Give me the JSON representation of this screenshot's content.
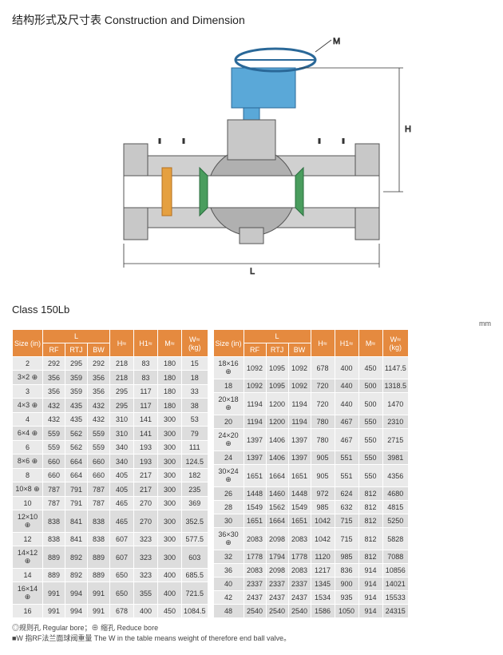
{
  "title": "结构形式及尺寸表 Construction and Dimension",
  "class_label": "Class 150Lb",
  "unit_label": "mm",
  "columns": {
    "size": "Size\n(in)",
    "L": "L",
    "RF": "RF",
    "RTJ": "RTJ",
    "BW": "BW",
    "H": "H≈",
    "H1": "H1≈",
    "M": "M≈",
    "W": "W≈\n(kg)"
  },
  "table_left": [
    [
      "2",
      "292",
      "295",
      "292",
      "218",
      "83",
      "180",
      "15"
    ],
    [
      "3×2 ⊕",
      "356",
      "359",
      "356",
      "218",
      "83",
      "180",
      "18"
    ],
    [
      "3",
      "356",
      "359",
      "356",
      "295",
      "117",
      "180",
      "33"
    ],
    [
      "4×3 ⊕",
      "432",
      "435",
      "432",
      "295",
      "117",
      "180",
      "38"
    ],
    [
      "4",
      "432",
      "435",
      "432",
      "310",
      "141",
      "300",
      "53"
    ],
    [
      "6×4 ⊕",
      "559",
      "562",
      "559",
      "310",
      "141",
      "300",
      "79"
    ],
    [
      "6",
      "559",
      "562",
      "559",
      "340",
      "193",
      "300",
      "111"
    ],
    [
      "8×6 ⊕",
      "660",
      "664",
      "660",
      "340",
      "193",
      "300",
      "124.5"
    ],
    [
      "8",
      "660",
      "664",
      "660",
      "405",
      "217",
      "300",
      "182"
    ],
    [
      "10×8 ⊕",
      "787",
      "791",
      "787",
      "405",
      "217",
      "300",
      "235"
    ],
    [
      "10",
      "787",
      "791",
      "787",
      "465",
      "270",
      "300",
      "369"
    ],
    [
      "12×10 ⊕",
      "838",
      "841",
      "838",
      "465",
      "270",
      "300",
      "352.5"
    ],
    [
      "12",
      "838",
      "841",
      "838",
      "607",
      "323",
      "300",
      "577.5"
    ],
    [
      "14×12 ⊕",
      "889",
      "892",
      "889",
      "607",
      "323",
      "300",
      "603"
    ],
    [
      "14",
      "889",
      "892",
      "889",
      "650",
      "323",
      "400",
      "685.5"
    ],
    [
      "16×14 ⊕",
      "991",
      "994",
      "991",
      "650",
      "355",
      "400",
      "721.5"
    ],
    [
      "16",
      "991",
      "994",
      "991",
      "678",
      "400",
      "450",
      "1084.5"
    ]
  ],
  "table_right": [
    [
      "18×16 ⊕",
      "1092",
      "1095",
      "1092",
      "678",
      "400",
      "450",
      "1147.5"
    ],
    [
      "18",
      "1092",
      "1095",
      "1092",
      "720",
      "440",
      "500",
      "1318.5"
    ],
    [
      "20×18 ⊕",
      "1194",
      "1200",
      "1194",
      "720",
      "440",
      "500",
      "1470"
    ],
    [
      "20",
      "1194",
      "1200",
      "1194",
      "780",
      "467",
      "550",
      "2310"
    ],
    [
      "24×20 ⊕",
      "1397",
      "1406",
      "1397",
      "780",
      "467",
      "550",
      "2715"
    ],
    [
      "24",
      "1397",
      "1406",
      "1397",
      "905",
      "551",
      "550",
      "3981"
    ],
    [
      "30×24 ⊕",
      "1651",
      "1664",
      "1651",
      "905",
      "551",
      "550",
      "4356"
    ],
    [
      "26",
      "1448",
      "1460",
      "1448",
      "972",
      "624",
      "812",
      "4680"
    ],
    [
      "28",
      "1549",
      "1562",
      "1549",
      "985",
      "632",
      "812",
      "4815"
    ],
    [
      "30",
      "1651",
      "1664",
      "1651",
      "1042",
      "715",
      "812",
      "5250"
    ],
    [
      "36×30 ⊕",
      "2083",
      "2098",
      "2083",
      "1042",
      "715",
      "812",
      "5828"
    ],
    [
      "32",
      "1778",
      "1794",
      "1778",
      "1120",
      "985",
      "812",
      "7088"
    ],
    [
      "36",
      "2083",
      "2098",
      "2083",
      "1217",
      "836",
      "914",
      "10856"
    ],
    [
      "40",
      "2337",
      "2337",
      "2337",
      "1345",
      "900",
      "914",
      "14021"
    ],
    [
      "42",
      "2437",
      "2437",
      "2437",
      "1534",
      "935",
      "914",
      "15533"
    ],
    [
      "48",
      "2540",
      "2540",
      "2540",
      "1586",
      "1050",
      "914",
      "24315"
    ]
  ],
  "footnotes": [
    "◎规则孔 Regular bore；⊕ 缩孔 Reduce bore",
    "■W 指RF法兰面球阀重量 The W in the table means weight of therefore end ball valve。"
  ],
  "diagram_labels": {
    "L": "L",
    "H": "H",
    "M": "M"
  }
}
